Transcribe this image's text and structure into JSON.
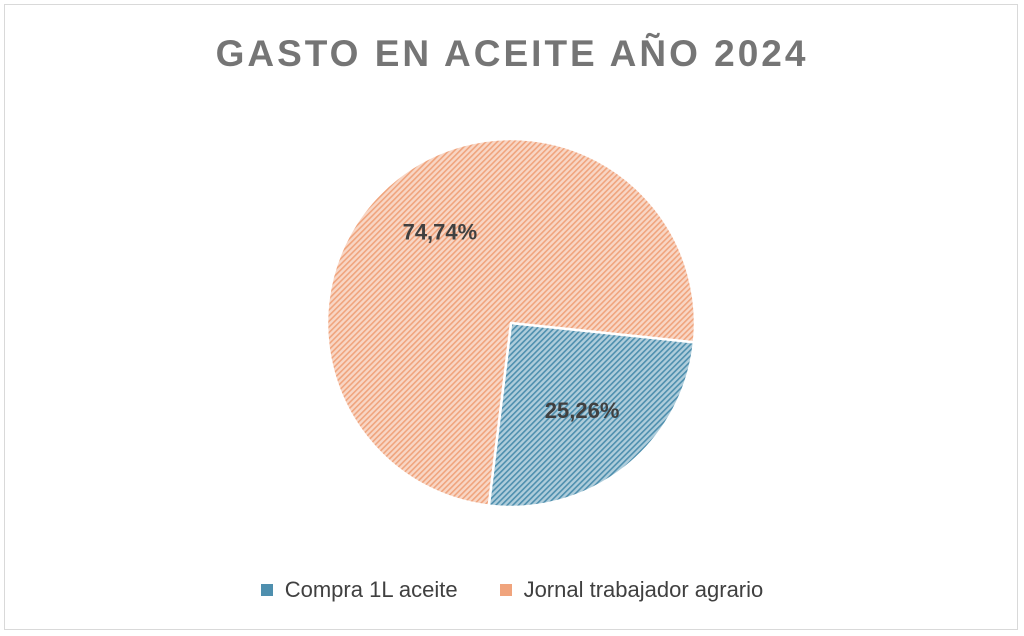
{
  "chart_data": {
    "type": "pie",
    "title": "GASTO EN ACEITE AÑO 2024",
    "slices": [
      {
        "name": "Compra 1L aceite",
        "value": 25.26,
        "label": "25,26%",
        "color": "#4e8fae"
      },
      {
        "name": "Jornal trabajador agrario",
        "value": 74.74,
        "label": "74,74%",
        "color": "#f0a47d"
      }
    ],
    "legend_position": "bottom",
    "fill_pattern": "diagonal-hatch"
  }
}
